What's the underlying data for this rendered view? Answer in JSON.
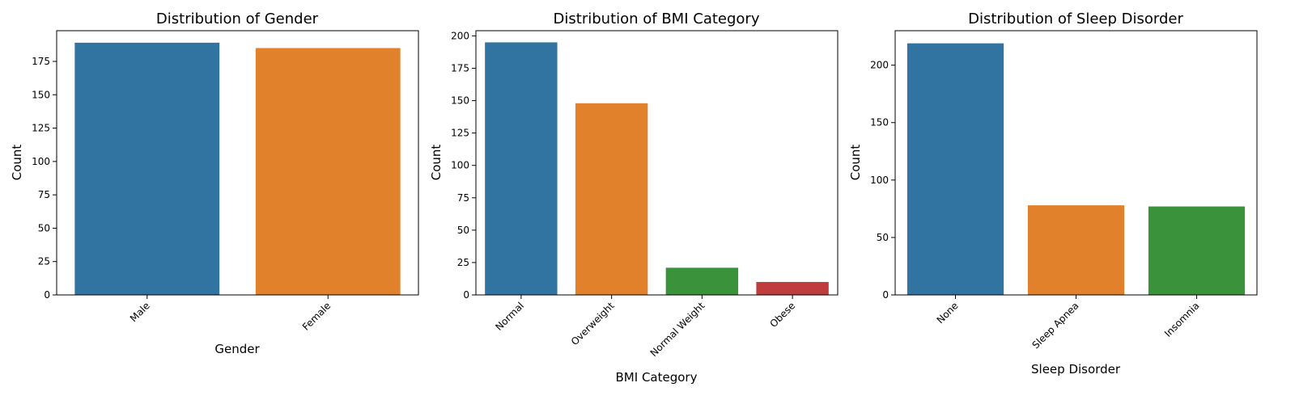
{
  "chart_data": [
    {
      "type": "bar",
      "title": "Distribution of Gender",
      "xlabel": "Gender",
      "ylabel": "Count",
      "categories": [
        "Male",
        "Female"
      ],
      "values": [
        189,
        185
      ],
      "colors": [
        "#3274a1",
        "#e1812c"
      ],
      "yticks": [
        0,
        25,
        50,
        75,
        100,
        125,
        150,
        175
      ],
      "ylim": [
        0,
        198
      ],
      "grid": false
    },
    {
      "type": "bar",
      "title": "Distribution of BMI Category",
      "xlabel": "BMI Category",
      "ylabel": "Count",
      "categories": [
        "Normal",
        "Overweight",
        "Normal Weight",
        "Obese"
      ],
      "values": [
        195,
        148,
        21,
        10
      ],
      "colors": [
        "#3274a1",
        "#e1812c",
        "#3a923a",
        "#c03d3e"
      ],
      "yticks": [
        0,
        25,
        50,
        75,
        100,
        125,
        150,
        175,
        200
      ],
      "ylim": [
        0,
        204
      ],
      "grid": false
    },
    {
      "type": "bar",
      "title": "Distribution of Sleep Disorder",
      "xlabel": "Sleep Disorder",
      "ylabel": "Count",
      "categories": [
        "None",
        "Sleep Apnea",
        "Insomnia"
      ],
      "values": [
        219,
        78,
        77
      ],
      "colors": [
        "#3274a1",
        "#e1812c",
        "#3a923a"
      ],
      "yticks": [
        0,
        50,
        100,
        150,
        200
      ],
      "ylim": [
        0,
        230
      ],
      "grid": false
    }
  ]
}
